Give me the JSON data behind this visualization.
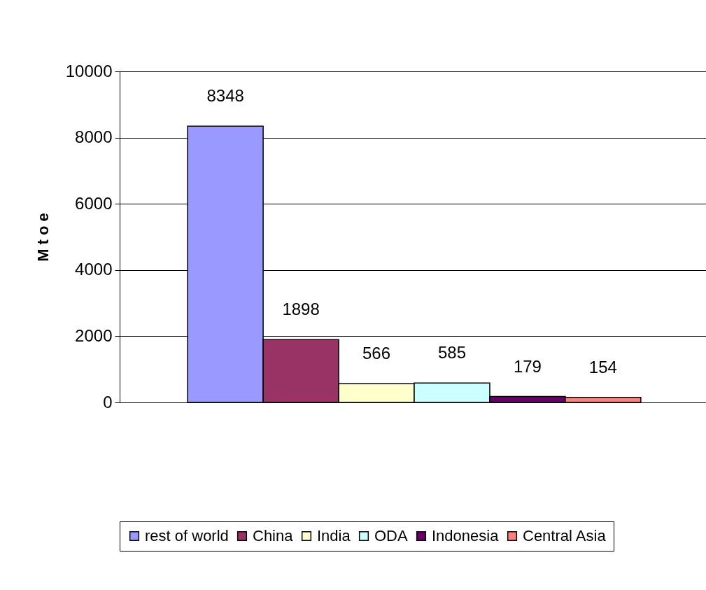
{
  "chart_data": {
    "type": "bar",
    "ylabel": "M t o e",
    "categories": [
      null
    ],
    "series": [
      {
        "name": "rest of world",
        "color": "#9999ff",
        "values": [
          8348
        ]
      },
      {
        "name": "China",
        "color": "#993366",
        "values": [
          1898
        ]
      },
      {
        "name": "India",
        "color": "#ffffcc",
        "values": [
          566
        ]
      },
      {
        "name": "ODA",
        "color": "#ccffff",
        "values": [
          585
        ]
      },
      {
        "name": "Indonesia",
        "color": "#660066",
        "values": [
          179
        ]
      },
      {
        "name": "Central Asia",
        "color": "#ff8080",
        "values": [
          154
        ]
      }
    ],
    "ylim": [
      0,
      10000
    ],
    "yticks": [
      0,
      2000,
      4000,
      6000,
      8000,
      10000
    ],
    "grid": "y",
    "legend": "bottom",
    "data_labels": true
  }
}
